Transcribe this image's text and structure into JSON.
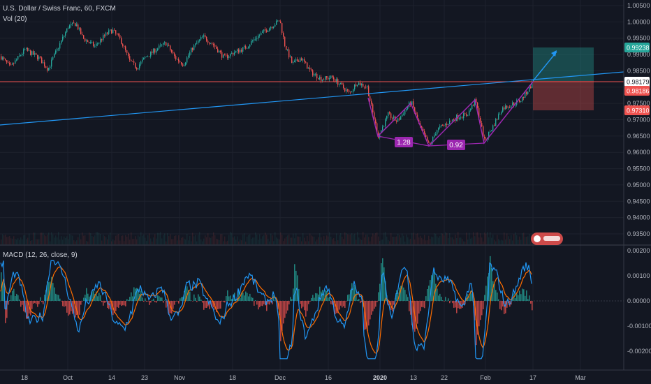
{
  "header": {
    "symbol": "U.S. Dollar / Swiss Franc, 60, FXCM",
    "volume_label": "Vol (20)",
    "macd_label": "MACD (12, 26, close, 9)"
  },
  "price_axis": {
    "ticks": [
      "1.00500",
      "1.00000",
      "0.99500",
      "0.99000",
      "0.98500",
      "0.98000",
      "0.97500",
      "0.97000",
      "0.96500",
      "0.96000",
      "0.95500",
      "0.95000",
      "0.94500",
      "0.94000",
      "0.93500"
    ],
    "ylim": [
      0.9325,
      1.0065
    ]
  },
  "macd_axis": {
    "ticks": [
      "0.00200",
      "0.00100",
      "0.00000",
      "-0.00100",
      "-0.00200"
    ],
    "ylim": [
      -0.00265,
      0.00215
    ]
  },
  "time_axis": {
    "ticks": [
      "18",
      "Oct",
      "14",
      "23",
      "Nov",
      "18",
      "Dec",
      "16",
      "2020",
      "13",
      "22",
      "Feb",
      "17",
      "Mar"
    ]
  },
  "price_badges": [
    {
      "label": "0.99238",
      "color": "#26a69a"
    },
    {
      "label": "0.98179",
      "color": "#ffffff"
    },
    {
      "label": "0.98186",
      "color": "#ef5350"
    },
    {
      "label": "0.97310",
      "color": "#ef5350"
    }
  ],
  "pattern_labels": [
    "1.28",
    "0.92"
  ],
  "colors": {
    "background": "#131722",
    "up": "#26a69a",
    "down": "#ef5350",
    "trendline": "#2196f3",
    "pattern": "#9c27b0",
    "macd_line": "#2196f3",
    "signal_line": "#ff6d00",
    "hist_pos": "#26a69a",
    "hist_neg": "#ef5350"
  },
  "chart_data": [
    {
      "type": "candlestick",
      "title": "U.S. Dollar / Swiss Franc, 60, FXCM",
      "x": [
        "Sep 18",
        "Oct 1",
        "Oct 14",
        "Oct 23",
        "Nov 1",
        "Nov 18",
        "Dec 1",
        "Dec 16",
        "Jan 1 2020",
        "Jan 13",
        "Jan 22",
        "Feb 1",
        "Feb 17"
      ],
      "close": [
        0.9895,
        0.9985,
        0.994,
        0.9875,
        0.99,
        0.9935,
        1.001,
        0.983,
        0.966,
        0.9745,
        0.97,
        0.968,
        0.9817
      ],
      "ylim": [
        0.9325,
        1.0065
      ],
      "annotations": {
        "trendline": {
          "start": 0.9685,
          "end": 0.9845
        },
        "horizontal_level": 0.98179,
        "harmonic_points": [
          0.9775,
          0.965,
          0.976,
          0.962,
          0.9765,
          0.9635,
          0.98179
        ],
        "ratios": [
          "1.28",
          "0.92"
        ],
        "long_position": {
          "entry": 0.98186,
          "target": 0.99238,
          "stop": 0.9731
        }
      }
    },
    {
      "type": "line",
      "title": "MACD (12, 26, close, 9)",
      "series": [
        {
          "name": "MACD",
          "approx_range": [
            -0.0022,
            0.0013
          ]
        },
        {
          "name": "Signal",
          "approx_range": [
            -0.0018,
            0.0011
          ]
        }
      ],
      "ylim": [
        -0.00265,
        0.00215
      ]
    }
  ]
}
